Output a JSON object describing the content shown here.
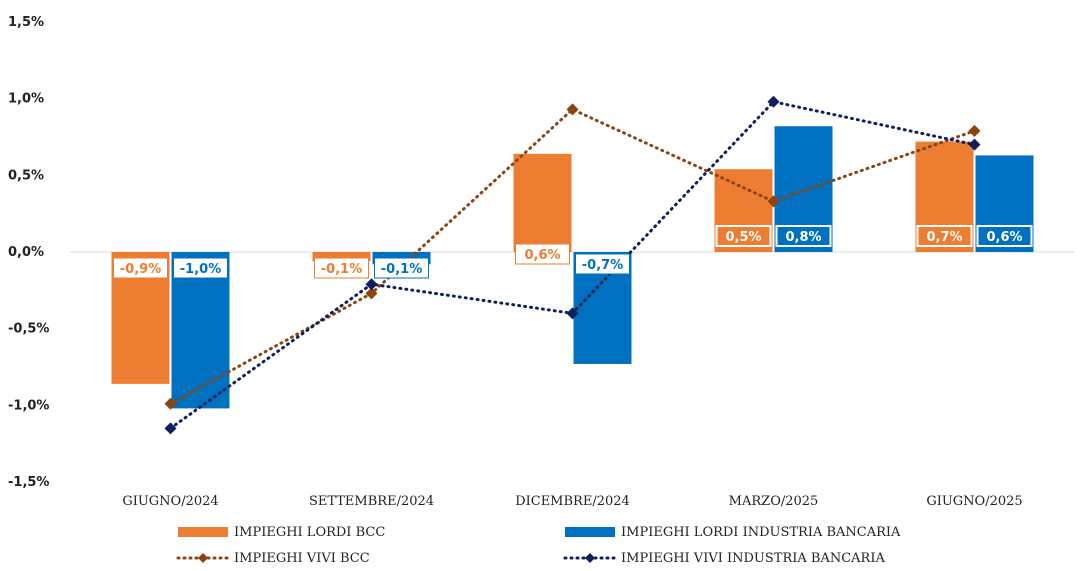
{
  "chart_data": {
    "type": "bar",
    "categories": [
      "GIUGNO/2024",
      "SETTEMBRE/2024",
      "DICEMBRE/2024",
      "MARZO/2025",
      "GIUGNO/2025"
    ],
    "ylim": [
      -1.5,
      1.5
    ],
    "yticks": [
      1.5,
      1.0,
      0.5,
      0.0,
      -0.5,
      -1.0,
      -1.5
    ],
    "ytick_labels": [
      "1,5%",
      "1,0%",
      "0,5%",
      "0,0%",
      "-0,5%",
      "-1,0%",
      "-1,5%"
    ],
    "grid": false,
    "legend_position": "bottom",
    "bar_series": [
      {
        "name": "IMPIEGHI LORDI BCC",
        "color": "#ED7D31",
        "values": [
          -0.86,
          -0.06,
          0.64,
          0.54,
          0.72
        ],
        "labels": [
          "-0,9%",
          "-0,1%",
          "0,6%",
          "0,5%",
          "0,7%"
        ],
        "label_style": [
          "outline",
          "outline",
          "outline",
          "filled",
          "filled"
        ]
      },
      {
        "name": "IMPIEGHI LORDI INDUSTRIA BANCARIA",
        "color": "#0070C0",
        "values": [
          -1.02,
          -0.08,
          -0.73,
          0.82,
          0.63
        ],
        "labels": [
          "-1,0%",
          "-0,1%",
          "-0,7%",
          "0,8%",
          "0,6%"
        ],
        "label_style": [
          "outline",
          "outline",
          "outline",
          "filled",
          "filled"
        ]
      }
    ],
    "line_series": [
      {
        "name": "IMPIEGHI VIVI BCC",
        "color": "#8B4513",
        "values": [
          -0.99,
          -0.27,
          0.93,
          0.33,
          0.79
        ]
      },
      {
        "name": "IMPIEGHI VIVI INDUSTRIA BANCARIA",
        "color": "#0D1F5C",
        "values": [
          -1.15,
          -0.21,
          -0.4,
          0.98,
          0.7
        ]
      }
    ]
  }
}
